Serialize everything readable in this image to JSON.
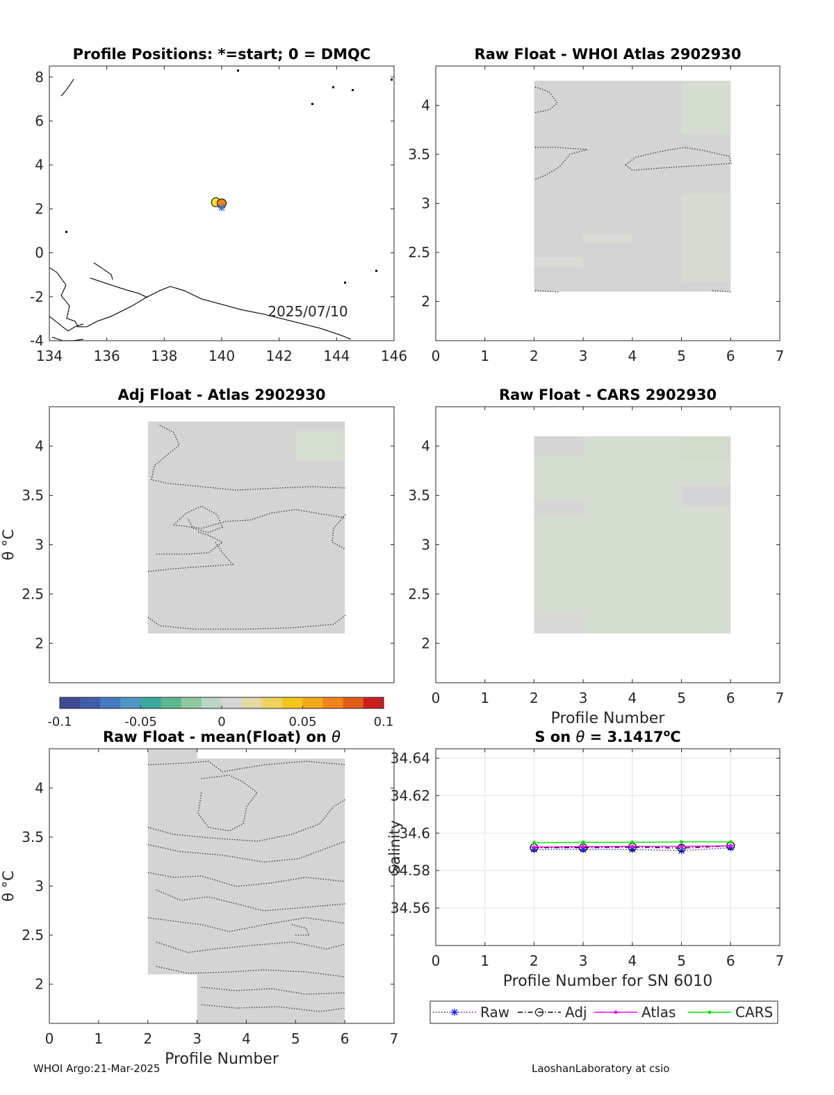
{
  "colors": {
    "panel_gray": "#d4d4d4",
    "panel_green": "#d5ddd0",
    "raw": "#1a1aff",
    "adj": "#000000",
    "atlas": "#ff00ff",
    "cars": "#00e600"
  },
  "footer": {
    "left": "WHOI Argo:21-Mar-2025",
    "right": "LaoshanLaboratory at csio"
  },
  "colorbar": {
    "ticks": [
      -0.1,
      -0.05,
      0,
      0.05,
      0.1
    ],
    "tick_labels": [
      "-0.1",
      "-0.05",
      "0",
      "0.05",
      "0.1"
    ],
    "colors": [
      "#3e4a93",
      "#3f5fa8",
      "#4579c2",
      "#4e96c3",
      "#3ba9a0",
      "#5db88c",
      "#8ec99f",
      "#bbd7c1",
      "#d6d6d6",
      "#e3d9a1",
      "#f0d35f",
      "#f5c51c",
      "#f7a81a",
      "#f08418",
      "#e35a16",
      "#cc1e1e"
    ]
  },
  "chart_data": [
    {
      "id": "positions",
      "type": "scatter",
      "title": "Profile Positions: *=start; 0 = DMQC",
      "xlim": [
        134,
        146
      ],
      "ylim": [
        -4,
        8.5
      ],
      "xticks": [
        134,
        136,
        138,
        140,
        142,
        144,
        146
      ],
      "yticks": [
        -4,
        -2,
        0,
        2,
        4,
        6,
        8
      ],
      "annotation": "2025/07/10",
      "points": [
        {
          "lon": 139.8,
          "lat": 2.3,
          "color": "#f3e21c"
        },
        {
          "lon": 140.0,
          "lat": 2.25,
          "color": "#ef7f1a"
        },
        {
          "lon": 140.0,
          "lat": 2.05,
          "marker": "star"
        }
      ]
    },
    {
      "id": "raw-whoi",
      "type": "heatmap",
      "title": "Raw Float - WHOI Atlas  2902930",
      "xlim": [
        0,
        7
      ],
      "ylim": [
        1.6,
        4.4
      ],
      "xticks": [
        0,
        1,
        2,
        3,
        4,
        5,
        6,
        7
      ],
      "yticks": [
        2,
        2.5,
        3,
        3.5,
        4
      ],
      "x_extent": [
        2,
        6
      ],
      "y_extent": [
        2.1,
        4.25
      ]
    },
    {
      "id": "adj-atlas",
      "type": "heatmap",
      "title": "Adj Float - Atlas  2902930",
      "ylabel": "θ °C",
      "xlim": [
        0,
        7
      ],
      "ylim": [
        1.6,
        4.4
      ],
      "xticks": [],
      "yticks": [
        2,
        2.5,
        3,
        3.5,
        4
      ],
      "x_extent": [
        2,
        6
      ],
      "y_extent": [
        2.1,
        4.25
      ]
    },
    {
      "id": "raw-cars",
      "type": "heatmap",
      "title": "Raw Float - CARS  2902930",
      "xlabel": "Profile Number",
      "xlim": [
        0,
        7
      ],
      "ylim": [
        1.6,
        4.4
      ],
      "xticks": [
        0,
        1,
        2,
        3,
        4,
        5,
        6,
        7
      ],
      "yticks": [
        2,
        2.5,
        3,
        3.5,
        4
      ],
      "x_extent": [
        2,
        6
      ],
      "y_extent": [
        2.1,
        4.1
      ]
    },
    {
      "id": "raw-mean",
      "type": "heatmap",
      "title": "Raw Float - mean(Float) on θ",
      "ylabel": "θ °C",
      "xlabel": "Profile Number",
      "xlim": [
        0,
        7
      ],
      "ylim": [
        1.6,
        4.4
      ],
      "xticks": [
        0,
        1,
        2,
        3,
        4,
        5,
        6,
        7
      ],
      "yticks": [
        2,
        2.5,
        3,
        3.5,
        4
      ]
    },
    {
      "id": "salinity",
      "type": "line",
      "title_prefix": "S on ",
      "title_theta": "θ",
      "title_mid": " = 3.1417",
      "title_sup": "o",
      "title_suffix": "C",
      "xlabel": "Profile Number for SN 6010",
      "ylabel": "Salinity",
      "xlim": [
        0,
        7
      ],
      "ylim": [
        34.54,
        34.645
      ],
      "xticks": [
        0,
        1,
        2,
        3,
        4,
        5,
        6,
        7
      ],
      "yticks": [
        34.56,
        34.58,
        34.6,
        34.62,
        34.64
      ],
      "ytick_labels": [
        "34.56",
        "34.58",
        "34.6",
        "34.62",
        "34.64"
      ],
      "grid": true,
      "legend": "bottom",
      "x": [
        2,
        3,
        4,
        5,
        6
      ],
      "series": [
        {
          "name": "Raw",
          "values": [
            34.5913,
            34.5913,
            34.5913,
            34.5906,
            34.5922
          ],
          "color": "#1a1aff",
          "dash": "1.5,2.5",
          "marker": "star"
        },
        {
          "name": "Adj",
          "values": [
            34.5922,
            34.5922,
            34.5925,
            34.592,
            34.5932
          ],
          "color": "#000000",
          "dash": "7,3,1.5,3",
          "marker": "circle"
        },
        {
          "name": "Atlas",
          "values": [
            34.5925,
            34.5928,
            34.5929,
            34.5929,
            34.5932
          ],
          "color": "#ff00ff",
          "dash": "",
          "marker": "dot"
        },
        {
          "name": "CARS",
          "values": [
            34.5949,
            34.5951,
            34.5951,
            34.5953,
            34.5953
          ],
          "color": "#00e600",
          "dash": "",
          "marker": "dot"
        }
      ]
    }
  ]
}
